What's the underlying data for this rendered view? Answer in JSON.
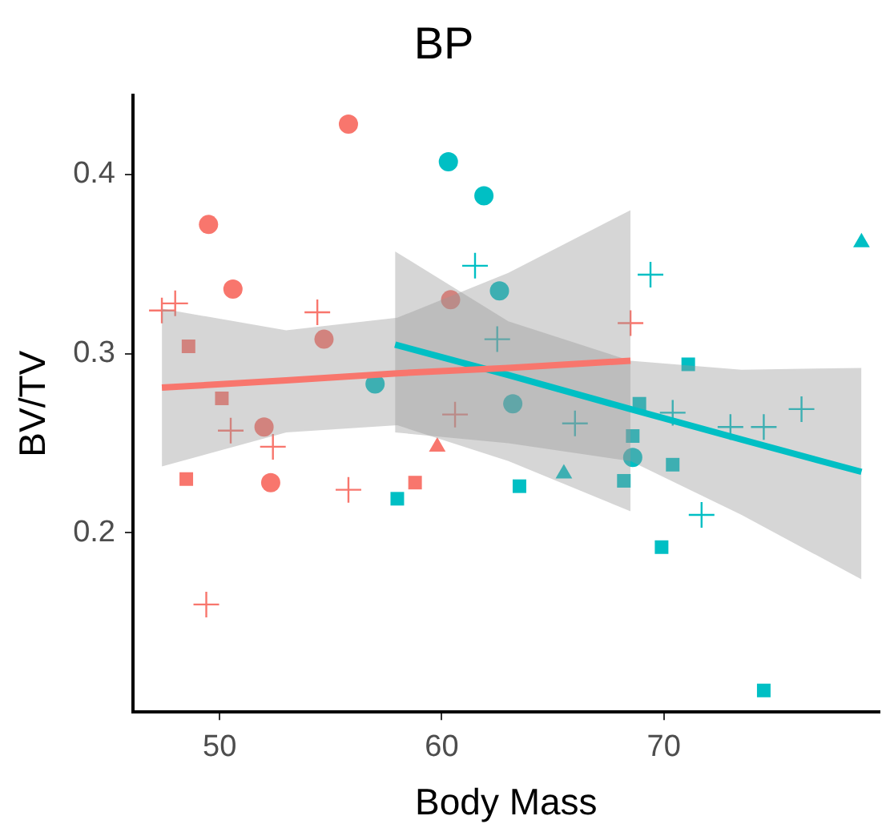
{
  "chart_data": {
    "type": "scatter",
    "title": "BP",
    "xlabel": "Body Mass",
    "ylabel": "BV/TV",
    "xlim": [
      46.1,
      79.7
    ],
    "ylim": [
      0.1,
      0.444
    ],
    "xticks": [
      50,
      60,
      70
    ],
    "yticks": [
      0.2,
      0.3,
      0.4
    ],
    "grid": false,
    "legend": false,
    "series": [
      {
        "marker": "circle",
        "color": "#f8766d",
        "x": [
          55.8,
          49.5,
          50.6,
          54.7,
          60.4,
          52.0,
          52.3
        ],
        "values": [
          0.428,
          0.372,
          0.336,
          0.308,
          0.33,
          0.259,
          0.228
        ]
      },
      {
        "marker": "square",
        "color": "#f8766d",
        "x": [
          48.6,
          50.1,
          48.5,
          58.8
        ],
        "values": [
          0.304,
          0.275,
          0.23,
          0.228
        ]
      },
      {
        "marker": "triangle",
        "color": "#f8766d",
        "x": [
          59.8
        ],
        "values": [
          0.248
        ]
      },
      {
        "marker": "cross",
        "color": "#f8766d",
        "x": [
          47.4,
          48.0,
          54.4,
          50.5,
          52.4,
          55.8,
          49.4,
          60.6,
          68.5
        ],
        "values": [
          0.324,
          0.328,
          0.323,
          0.257,
          0.248,
          0.224,
          0.16,
          0.266,
          0.317
        ]
      },
      {
        "marker": "circle",
        "color": "#00bfc4",
        "x": [
          60.3,
          61.9,
          62.6,
          57.0,
          63.2,
          68.6
        ],
        "values": [
          0.407,
          0.388,
          0.335,
          0.283,
          0.272,
          0.242
        ]
      },
      {
        "marker": "square",
        "color": "#00bfc4",
        "x": [
          68.9,
          68.6,
          68.2,
          70.4,
          63.5,
          69.9,
          74.5,
          71.1,
          58.0
        ],
        "values": [
          0.272,
          0.254,
          0.229,
          0.238,
          0.226,
          0.192,
          0.112,
          0.294,
          0.219
        ]
      },
      {
        "marker": "triangle",
        "color": "#00bfc4",
        "x": [
          78.9,
          65.5
        ],
        "values": [
          0.362,
          0.233
        ]
      },
      {
        "marker": "cross",
        "color": "#00bfc4",
        "x": [
          69.4,
          61.5,
          62.5,
          66.0,
          70.4,
          73.0,
          74.5,
          76.2,
          71.7
        ],
        "values": [
          0.344,
          0.349,
          0.308,
          0.261,
          0.267,
          0.259,
          0.259,
          0.269,
          0.21
        ]
      },
      {
        "type": "line",
        "marker": "none",
        "color": "#f8766d",
        "x": [
          47.4,
          53,
          58,
          63,
          68.5
        ],
        "values": [
          0.281,
          0.285,
          0.289,
          0.292,
          0.296
        ],
        "lower": [
          0.237,
          0.256,
          0.26,
          0.24,
          0.212
        ],
        "upper": [
          0.325,
          0.313,
          0.32,
          0.345,
          0.38
        ]
      },
      {
        "type": "line",
        "marker": "none",
        "color": "#00bfc4",
        "x": [
          57.9,
          63,
          68.5,
          73.5,
          78.9
        ],
        "values": [
          0.305,
          0.288,
          0.269,
          0.252,
          0.234
        ],
        "lower": [
          0.256,
          0.25,
          0.24,
          0.21,
          0.174
        ],
        "upper": [
          0.357,
          0.318,
          0.296,
          0.291,
          0.292
        ]
      }
    ]
  }
}
